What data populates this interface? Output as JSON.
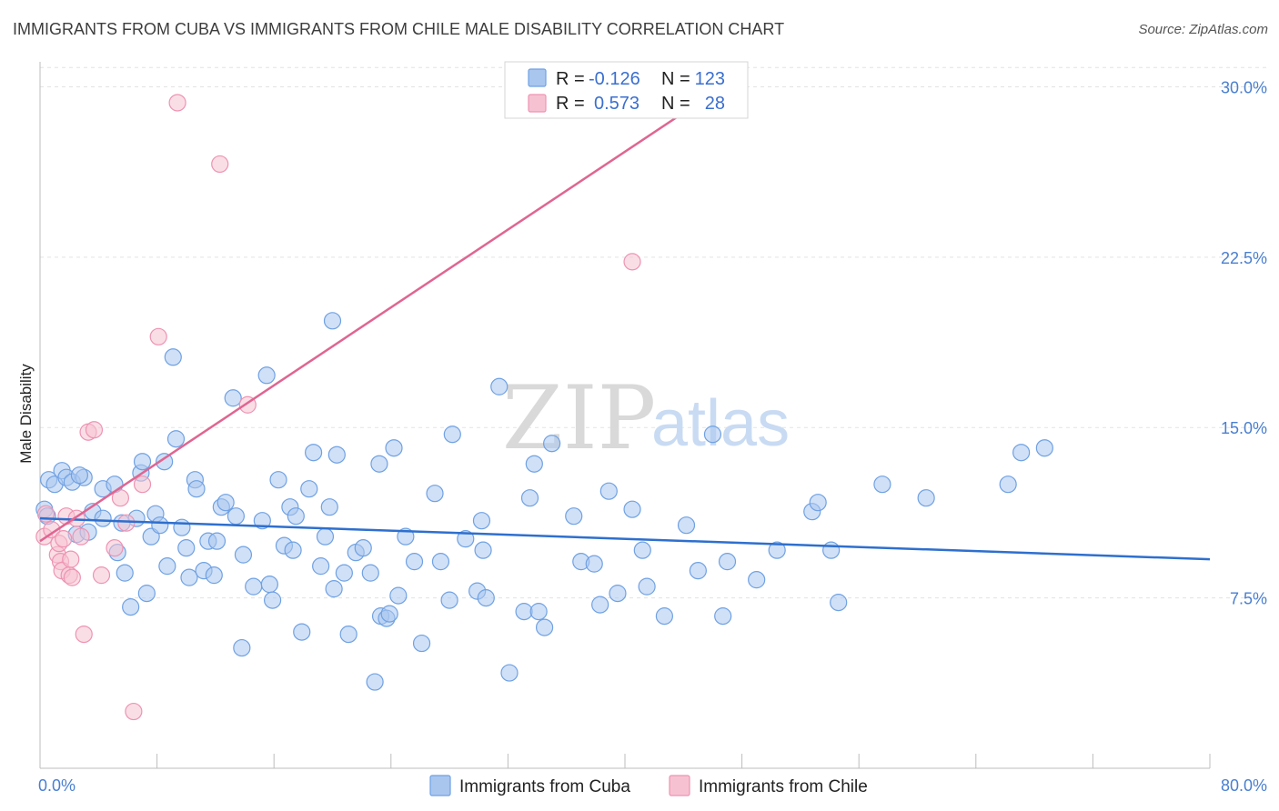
{
  "header": {
    "title": "IMMIGRANTS FROM CUBA VS IMMIGRANTS FROM CHILE MALE DISABILITY CORRELATION CHART",
    "source": "Source: ZipAtlas.com"
  },
  "watermark": {
    "part1": "ZIP",
    "part2": "atlas"
  },
  "stats": [
    {
      "r_label": "R =",
      "r_value": "-0.126",
      "n_label": "N =",
      "n_value": "123",
      "color": "#6fa1e3"
    },
    {
      "r_label": "R =",
      "r_value": "0.573",
      "n_label": "N =",
      "n_value": "28",
      "color": "#f0a0bc"
    }
  ],
  "colors": {
    "cuba_fill": "#a9c6ef",
    "cuba_stroke": "#6fa1e3",
    "cuba_line": "#2e6fce",
    "chile_fill": "#f6c2d2",
    "chile_stroke": "#ee93b2",
    "chile_line": "#e06591",
    "grid": "#e3e3e3",
    "axis_text": "#4a7fd0"
  },
  "chart_data": {
    "type": "scatter",
    "title": "IMMIGRANTS FROM CUBA VS IMMIGRANTS FROM CHILE MALE DISABILITY CORRELATION CHART",
    "xlabel": "",
    "ylabel": "Male Disability",
    "xlim": [
      0,
      80
    ],
    "ylim": [
      0,
      31.5
    ],
    "x_tick_labels": [
      "0.0%",
      "80.0%"
    ],
    "y_ticks": [
      7.5,
      15.0,
      22.5,
      30.0
    ],
    "y_tick_labels": [
      "7.5%",
      "15.0%",
      "22.5%",
      "30.0%"
    ],
    "grid": true,
    "legend_position": "bottom",
    "series": [
      {
        "name": "Immigrants from Cuba",
        "trend": [
          [
            0,
            11.0
          ],
          [
            80,
            9.2
          ]
        ],
        "points": [
          [
            0.3,
            11.4
          ],
          [
            0.5,
            11.1
          ],
          [
            0.6,
            12.7
          ],
          [
            1.0,
            12.5
          ],
          [
            1.5,
            13.1
          ],
          [
            1.8,
            12.8
          ],
          [
            2.2,
            12.6
          ],
          [
            3.0,
            12.8
          ],
          [
            2.7,
            12.9
          ],
          [
            2.5,
            10.3
          ],
          [
            3.3,
            10.4
          ],
          [
            3.6,
            11.3
          ],
          [
            4.3,
            11.0
          ],
          [
            4.3,
            12.3
          ],
          [
            5.1,
            12.5
          ],
          [
            5.3,
            9.5
          ],
          [
            5.6,
            10.8
          ],
          [
            5.8,
            8.6
          ],
          [
            6.2,
            7.1
          ],
          [
            6.6,
            11.0
          ],
          [
            6.9,
            13.0
          ],
          [
            7.0,
            13.5
          ],
          [
            7.3,
            7.7
          ],
          [
            7.6,
            10.2
          ],
          [
            7.9,
            11.2
          ],
          [
            8.2,
            10.7
          ],
          [
            8.5,
            13.5
          ],
          [
            8.7,
            8.9
          ],
          [
            9.3,
            14.5
          ],
          [
            9.1,
            18.1
          ],
          [
            9.7,
            10.6
          ],
          [
            10.0,
            9.7
          ],
          [
            10.2,
            8.4
          ],
          [
            10.6,
            12.7
          ],
          [
            10.7,
            12.3
          ],
          [
            11.2,
            8.7
          ],
          [
            11.5,
            10.0
          ],
          [
            11.9,
            8.5
          ],
          [
            12.1,
            10.0
          ],
          [
            12.4,
            11.5
          ],
          [
            12.7,
            11.7
          ],
          [
            13.2,
            16.3
          ],
          [
            13.4,
            11.1
          ],
          [
            13.8,
            5.3
          ],
          [
            13.9,
            9.4
          ],
          [
            14.6,
            8.0
          ],
          [
            15.2,
            10.9
          ],
          [
            15.5,
            17.3
          ],
          [
            15.7,
            8.1
          ],
          [
            15.9,
            7.4
          ],
          [
            16.3,
            12.7
          ],
          [
            16.7,
            9.8
          ],
          [
            17.1,
            11.5
          ],
          [
            17.3,
            9.6
          ],
          [
            17.5,
            11.1
          ],
          [
            17.9,
            6.0
          ],
          [
            18.4,
            12.3
          ],
          [
            18.7,
            13.9
          ],
          [
            19.2,
            8.9
          ],
          [
            19.5,
            10.2
          ],
          [
            19.8,
            11.5
          ],
          [
            20.0,
            19.7
          ],
          [
            20.1,
            7.9
          ],
          [
            20.3,
            13.8
          ],
          [
            20.8,
            8.6
          ],
          [
            21.1,
            5.9
          ],
          [
            21.6,
            9.5
          ],
          [
            22.1,
            9.7
          ],
          [
            22.6,
            8.6
          ],
          [
            22.9,
            3.8
          ],
          [
            23.2,
            13.4
          ],
          [
            23.3,
            6.7
          ],
          [
            23.7,
            6.6
          ],
          [
            23.9,
            6.8
          ],
          [
            24.2,
            14.1
          ],
          [
            24.5,
            7.6
          ],
          [
            25.0,
            10.2
          ],
          [
            25.6,
            9.1
          ],
          [
            26.1,
            5.5
          ],
          [
            27.0,
            12.1
          ],
          [
            27.4,
            9.1
          ],
          [
            28.0,
            7.4
          ],
          [
            28.2,
            14.7
          ],
          [
            29.1,
            10.1
          ],
          [
            29.9,
            7.8
          ],
          [
            30.2,
            10.9
          ],
          [
            30.3,
            9.6
          ],
          [
            30.5,
            7.5
          ],
          [
            31.4,
            16.8
          ],
          [
            32.1,
            4.2
          ],
          [
            33.1,
            6.9
          ],
          [
            33.5,
            11.9
          ],
          [
            33.8,
            13.4
          ],
          [
            34.1,
            6.9
          ],
          [
            34.5,
            6.2
          ],
          [
            35.0,
            14.3
          ],
          [
            36.5,
            11.1
          ],
          [
            37.0,
            9.1
          ],
          [
            37.9,
            9.0
          ],
          [
            38.3,
            7.2
          ],
          [
            38.9,
            12.2
          ],
          [
            39.5,
            7.7
          ],
          [
            40.5,
            11.4
          ],
          [
            41.2,
            9.6
          ],
          [
            41.5,
            8.0
          ],
          [
            42.7,
            6.7
          ],
          [
            44.2,
            10.7
          ],
          [
            45.0,
            8.7
          ],
          [
            46.0,
            14.7
          ],
          [
            46.7,
            6.7
          ],
          [
            47.0,
            9.1
          ],
          [
            49.0,
            8.3
          ],
          [
            50.4,
            9.6
          ],
          [
            52.8,
            11.3
          ],
          [
            53.2,
            11.7
          ],
          [
            54.1,
            9.6
          ],
          [
            54.6,
            7.3
          ],
          [
            57.6,
            12.5
          ],
          [
            60.6,
            11.9
          ],
          [
            66.2,
            12.5
          ],
          [
            67.1,
            13.9
          ],
          [
            68.7,
            14.1
          ]
        ]
      },
      {
        "name": "Immigrants from Chile",
        "trend": [
          [
            0,
            10.0
          ],
          [
            45.5,
            29.5
          ]
        ],
        "points": [
          [
            0.3,
            10.2
          ],
          [
            0.8,
            10.5
          ],
          [
            1.2,
            9.4
          ],
          [
            1.3,
            9.9
          ],
          [
            1.4,
            9.1
          ],
          [
            1.5,
            8.7
          ],
          [
            1.6,
            10.1
          ],
          [
            1.8,
            11.1
          ],
          [
            2.0,
            8.5
          ],
          [
            2.1,
            9.2
          ],
          [
            2.2,
            8.4
          ],
          [
            2.5,
            11.0
          ],
          [
            2.8,
            10.2
          ],
          [
            3.0,
            5.9
          ],
          [
            3.3,
            14.8
          ],
          [
            3.7,
            14.9
          ],
          [
            4.2,
            8.5
          ],
          [
            5.1,
            9.7
          ],
          [
            5.5,
            11.9
          ],
          [
            5.9,
            10.8
          ],
          [
            6.4,
            2.5
          ],
          [
            7.0,
            12.5
          ],
          [
            8.1,
            19.0
          ],
          [
            9.4,
            29.3
          ],
          [
            12.3,
            26.6
          ],
          [
            14.2,
            16.0
          ],
          [
            40.5,
            22.3
          ],
          [
            0.4,
            11.2
          ]
        ]
      }
    ]
  },
  "legend": {
    "items": [
      {
        "label": "Immigrants from Cuba"
      },
      {
        "label": "Immigrants from Chile"
      }
    ]
  }
}
